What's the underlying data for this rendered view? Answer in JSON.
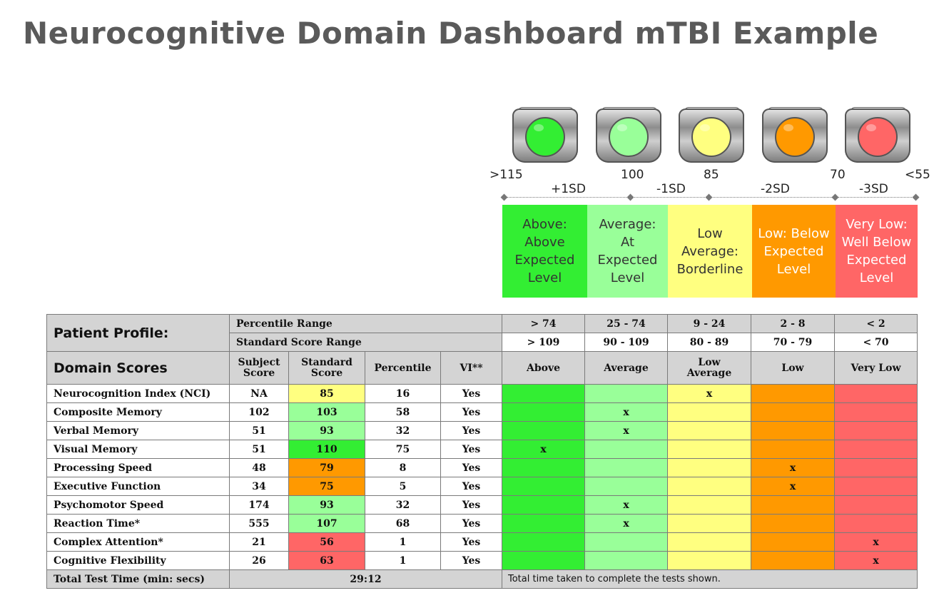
{
  "title": "Neurocognitive Domain Dashboard mTBI Example",
  "colors": {
    "above": "#33ee33",
    "average": "#99ff99",
    "low_average": "#ffff80",
    "low": "#ff9900",
    "very_low": "#ff6666",
    "title": "#5a5a5a"
  },
  "scale": {
    "values": [
      ">115",
      "100",
      "85",
      "70",
      "<55"
    ],
    "sd": [
      "+1SD",
      "-1SD",
      "-2SD",
      "-3SD"
    ]
  },
  "bands": [
    {
      "label": "Above: Above Expected Level",
      "l1": "Above:",
      "l2": "Above",
      "l3": "Expected",
      "l4": "Level"
    },
    {
      "label": "Average: At Expected Level",
      "l1": "Average:",
      "l2": "At",
      "l3": "Expected",
      "l4": "Level"
    },
    {
      "l1": "Low",
      "l2": "Average:",
      "l3": "Borderline"
    },
    {
      "l1": "Low: Below",
      "l2": "Expected",
      "l3": "Level"
    },
    {
      "l1": "Very Low:",
      "l2": "Well Below",
      "l3": "Expected",
      "l4": "Level"
    }
  ],
  "table": {
    "profile_label": "Patient Profile:",
    "percentile_range_label": "Percentile Range",
    "standard_score_range_label": "Standard Score Range",
    "percentile_ranges": [
      "> 74",
      "25 - 74",
      "9 - 24",
      "2 - 8",
      "< 2"
    ],
    "standard_ranges": [
      "> 109",
      "90 - 109",
      "80 - 89",
      "70 - 79",
      "< 70"
    ],
    "domain_scores_label": "Domain Scores",
    "col_subject_1": "Subject",
    "col_subject_2": "Score",
    "col_standard_1": "Standard",
    "col_standard_2": "Score",
    "col_percentile": "Percentile",
    "col_vi": "VI**",
    "col_above": "Above",
    "col_average": "Average",
    "col_low_average_1": "Low",
    "col_low_average_2": "Average",
    "col_low": "Low",
    "col_very_low": "Very Low",
    "rows": [
      {
        "name": "Neurocognition  Index (NCI)",
        "subject": "NA",
        "standard": "85",
        "percentile": "16",
        "vi": "Yes",
        "band": 2
      },
      {
        "name": "Composite Memory",
        "subject": "102",
        "standard": "103",
        "percentile": "58",
        "vi": "Yes",
        "band": 1
      },
      {
        "name": "Verbal Memory",
        "subject": "51",
        "standard": "93",
        "percentile": "32",
        "vi": "Yes",
        "band": 1
      },
      {
        "name": "Visual Memory",
        "subject": "51",
        "standard": "110",
        "percentile": "75",
        "vi": "Yes",
        "band": 0
      },
      {
        "name": "Processing Speed",
        "subject": "48",
        "standard": "79",
        "percentile": "8",
        "vi": "Yes",
        "band": 3
      },
      {
        "name": "Executive Function",
        "subject": "34",
        "standard": "75",
        "percentile": "5",
        "vi": "Yes",
        "band": 3
      },
      {
        "name": "Psychomotor Speed",
        "subject": "174",
        "standard": "93",
        "percentile": "32",
        "vi": "Yes",
        "band": 1
      },
      {
        "name": "Reaction Time*",
        "subject": "555",
        "standard": "107",
        "percentile": "68",
        "vi": "Yes",
        "band": 1
      },
      {
        "name": "Complex Attention*",
        "subject": "21",
        "standard": "56",
        "percentile": "1",
        "vi": "Yes",
        "band": 4
      },
      {
        "name": "Cognitive Flexibility",
        "subject": "26",
        "standard": "63",
        "percentile": "1",
        "vi": "Yes",
        "band": 4
      }
    ],
    "mark": "x",
    "total_label": "Total Test Time (min: secs)",
    "total_value": "29:12",
    "total_note": "Total time taken to complete the tests shown."
  }
}
